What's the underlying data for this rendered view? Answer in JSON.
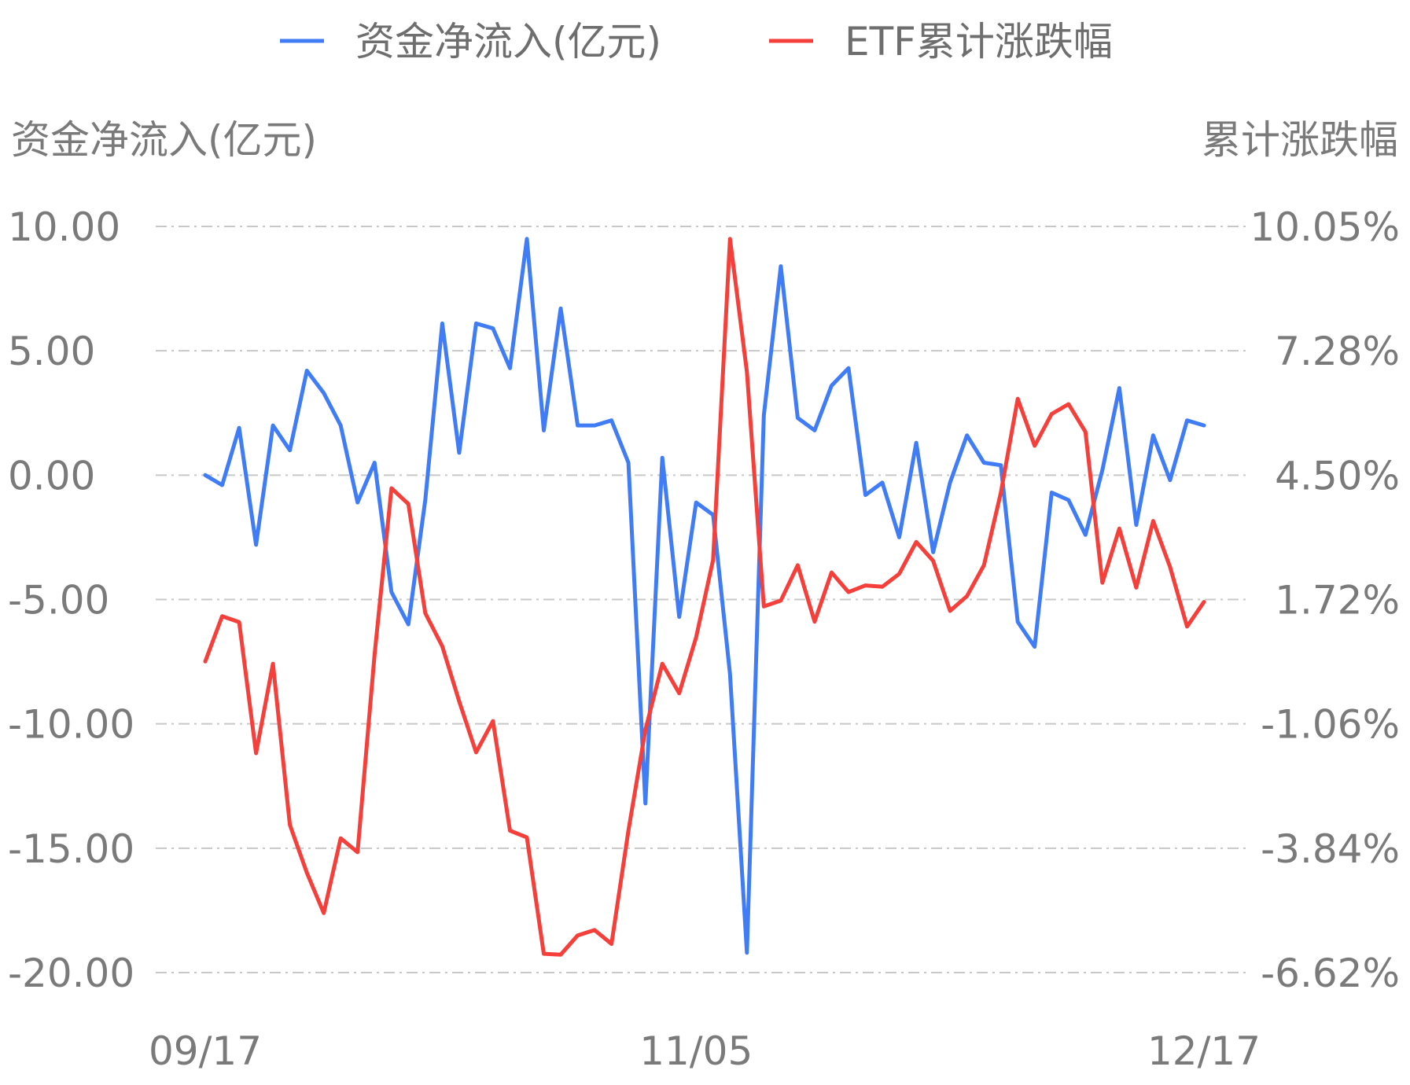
{
  "chart_data": {
    "type": "line",
    "legend": {
      "position": "top-center",
      "entries": [
        {
          "name": "资金净流入(亿元)",
          "color": "#3f7cf5"
        },
        {
          "name": "ETF累计涨跌幅",
          "color": "#f53f3b"
        }
      ]
    },
    "y_left": {
      "label": "资金净流入(亿元)",
      "range": [
        -20,
        10
      ],
      "ticks": [
        "10.00",
        "5.00",
        "0.00",
        "-5.00",
        "-10.00",
        "-15.00",
        "-20.00"
      ]
    },
    "y_right": {
      "label": "累计涨跌幅",
      "range": [
        -6.62,
        10.05
      ],
      "ticks": [
        "10.05%",
        "7.28%",
        "4.50%",
        "1.72%",
        "-1.06%",
        "-3.84%",
        "-6.62%"
      ]
    },
    "x_ticks": [
      {
        "label": "09/17",
        "index": 0
      },
      {
        "label": "11/05",
        "index": 29
      },
      {
        "label": "12/17",
        "index": 59
      }
    ],
    "grid": true,
    "series": [
      {
        "name": "资金净流入(亿元)",
        "axis": "left",
        "color": "#3f7cf5",
        "values": [
          0.0,
          -0.4,
          1.9,
          -2.8,
          2.0,
          1.0,
          4.2,
          3.3,
          2.0,
          -1.1,
          0.5,
          -4.7,
          -6.0,
          -1.0,
          6.1,
          0.9,
          6.1,
          5.9,
          4.3,
          9.5,
          1.8,
          6.7,
          2.0,
          2.0,
          2.2,
          0.5,
          -13.2,
          0.7,
          -5.7,
          -1.1,
          -1.6,
          -8.0,
          -19.2,
          2.4,
          8.4,
          2.3,
          1.8,
          3.6,
          4.3,
          -0.8,
          -0.3,
          -2.5,
          1.3,
          -3.1,
          -0.3,
          1.6,
          0.5,
          0.4,
          -5.9,
          -6.9,
          -0.7,
          -1.0,
          -2.4,
          0.2,
          3.5,
          -2.0,
          1.6,
          -0.2,
          2.2,
          2.0
        ]
      },
      {
        "name": "ETF累计涨跌幅",
        "axis": "right",
        "color": "#f53f3b",
        "values": [
          0.33,
          1.34,
          1.21,
          -1.72,
          0.28,
          -3.32,
          -4.39,
          -5.29,
          -3.62,
          -3.93,
          0.48,
          4.2,
          3.85,
          1.41,
          0.67,
          -0.56,
          -1.7,
          -1.0,
          -3.45,
          -3.6,
          -6.2,
          -6.22,
          -5.79,
          -5.67,
          -5.98,
          -3.45,
          -1.2,
          0.28,
          -0.38,
          0.87,
          2.6,
          9.77,
          6.8,
          1.56,
          1.69,
          2.48,
          1.22,
          2.32,
          1.88,
          2.03,
          2.0,
          2.29,
          3.0,
          2.58,
          1.46,
          1.79,
          2.48,
          4.1,
          6.2,
          5.15,
          5.86,
          6.08,
          5.46,
          2.09,
          3.3,
          1.98,
          3.47,
          2.44,
          1.11,
          1.66
        ]
      }
    ]
  }
}
